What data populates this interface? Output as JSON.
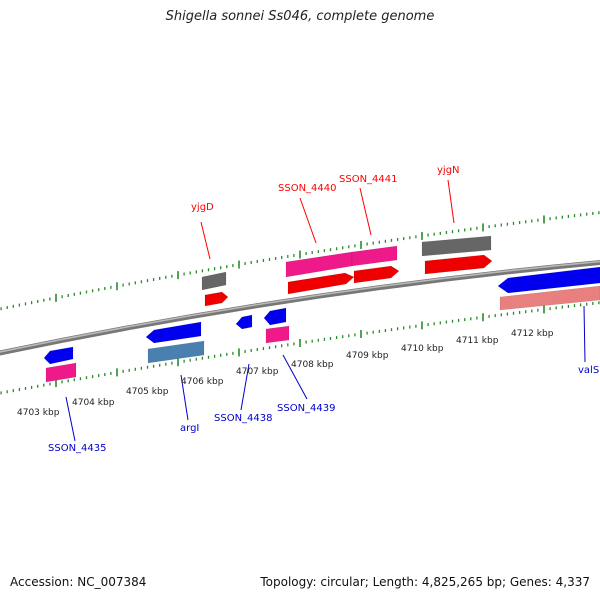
{
  "title": "Shigella sonnei Ss046, complete genome",
  "accession": "Accession: NC_007384",
  "topology": "Topology: circular; Length: 4,825,265 bp; Genes: 4,337",
  "colors": {
    "forward_label": "#ff0000",
    "reverse_label": "#0000cc",
    "backbone": "#888888",
    "tick": "#2a8a2a",
    "gene_blue": "#0000ee",
    "gene_red": "#ee0000",
    "gene_pink": "#ee1a8a",
    "gene_gray": "#666666",
    "gene_steel": "#4a80b0",
    "gene_salmon": "#e88080"
  },
  "scale_labels": [
    "4703 kbp",
    "4704 kbp",
    "4705 kbp",
    "4706 kbp",
    "4707 kbp",
    "4708 kbp",
    "4709 kbp",
    "4710 kbp",
    "4711 kbp",
    "4712 kbp"
  ],
  "gene_labels": {
    "forward": [
      "yjgD",
      "SSON_4440",
      "SSON_4441",
      "yjgN"
    ],
    "reverse": [
      "SSON_4435",
      "argI",
      "SSON_4438",
      "SSON_4439",
      "valS"
    ]
  }
}
